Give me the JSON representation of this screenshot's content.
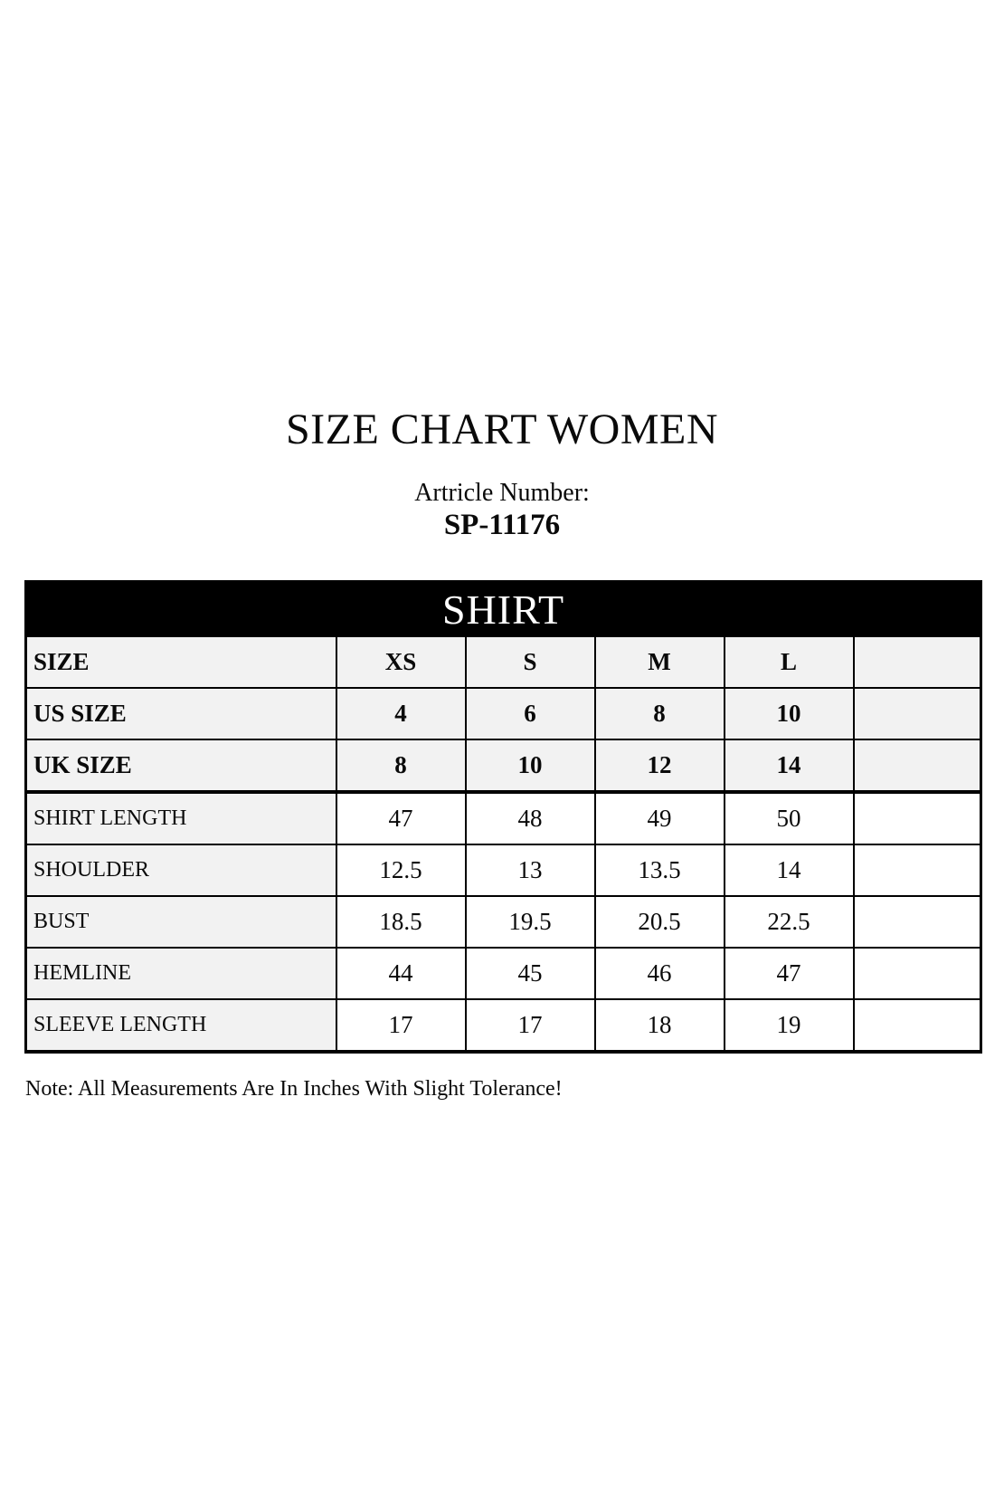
{
  "header": {
    "title": "SIZE CHART WOMEN",
    "article_label": "Artricle Number:",
    "article_number": "SP-11176"
  },
  "table": {
    "title": "SHIRT",
    "rows": [
      {
        "label": "SIZE",
        "values": [
          "XS",
          "S",
          "M",
          "L",
          ""
        ],
        "bold": true,
        "shaded_row": true,
        "thick_bottom": false
      },
      {
        "label": "US SIZE",
        "values": [
          "4",
          "6",
          "8",
          "10",
          ""
        ],
        "bold": true,
        "shaded_row": true,
        "thick_bottom": false
      },
      {
        "label": "UK SIZE",
        "values": [
          "8",
          "10",
          "12",
          "14",
          ""
        ],
        "bold": true,
        "shaded_row": true,
        "thick_bottom": true
      },
      {
        "label": "SHIRT LENGTH",
        "values": [
          "47",
          "48",
          "49",
          "50",
          ""
        ],
        "bold": false,
        "shaded_row": false,
        "thick_bottom": false
      },
      {
        "label": "SHOULDER",
        "values": [
          "12.5",
          "13",
          "13.5",
          "14",
          ""
        ],
        "bold": false,
        "shaded_row": false,
        "thick_bottom": false
      },
      {
        "label": "BUST",
        "values": [
          "18.5",
          "19.5",
          "20.5",
          "22.5",
          ""
        ],
        "bold": false,
        "shaded_row": false,
        "thick_bottom": false
      },
      {
        "label": "HEMLINE",
        "values": [
          "44",
          "45",
          "46",
          "47",
          ""
        ],
        "bold": false,
        "shaded_row": false,
        "thick_bottom": false
      },
      {
        "label": "SLEEVE LENGTH",
        "values": [
          "17",
          "17",
          "18",
          "19",
          ""
        ],
        "bold": false,
        "shaded_row": false,
        "thick_bottom": false
      }
    ]
  },
  "note": "Note: All Measurements Are In Inches With Slight Tolerance!",
  "colors": {
    "bar_background": "#000000",
    "bar_text": "#ffffff",
    "shaded_cell": "#f2f2f2",
    "border": "#000000"
  }
}
